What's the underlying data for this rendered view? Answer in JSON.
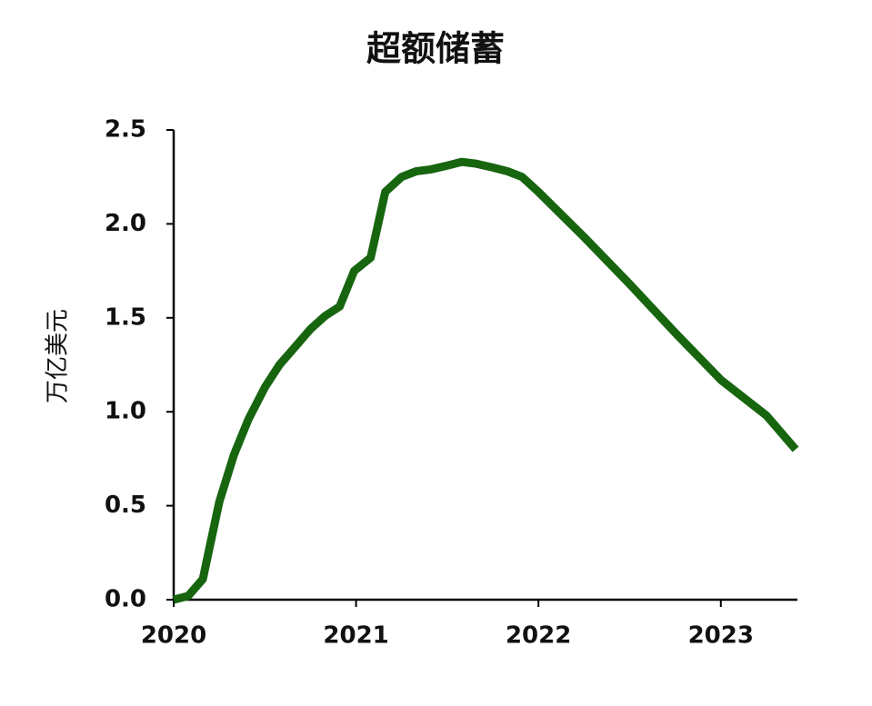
{
  "chart_data": {
    "type": "line",
    "title": "超额储蓄",
    "y_label": "万亿美元",
    "x": [
      2020.0,
      2020.08,
      2020.16,
      2020.25,
      2020.33,
      2020.41,
      2020.5,
      2020.58,
      2020.67,
      2020.75,
      2020.83,
      2020.91,
      2020.99,
      2021.08,
      2021.16,
      2021.25,
      2021.33,
      2021.41,
      2021.5,
      2021.58,
      2021.66,
      2021.75,
      2021.83,
      2021.91,
      2022.0,
      2022.25,
      2022.5,
      2022.75,
      2023.0,
      2023.25,
      2023.41
    ],
    "series": [
      {
        "name": "超额储蓄",
        "color": "#17650f",
        "values": [
          0,
          0.02,
          0.11,
          0.52,
          0.77,
          0.96,
          1.13,
          1.25,
          1.35,
          1.44,
          1.51,
          1.56,
          1.75,
          1.82,
          2.17,
          2.25,
          2.28,
          2.29,
          2.31,
          2.33,
          2.32,
          2.3,
          2.28,
          2.25,
          2.17,
          1.93,
          1.68,
          1.42,
          1.17,
          0.98,
          0.8
        ]
      }
    ],
    "xlim": [
      2020,
      2023.42
    ],
    "xticks": [
      2020,
      2021,
      2022,
      2023
    ],
    "ylim": [
      0,
      2.5
    ],
    "yticks": [
      {
        "value": 0,
        "label": "0.0"
      },
      0.5,
      {
        "value": 1,
        "label": "1.0"
      },
      1.5,
      {
        "value": 2,
        "label": "2.0"
      },
      2.5
    ],
    "grid": false
  }
}
